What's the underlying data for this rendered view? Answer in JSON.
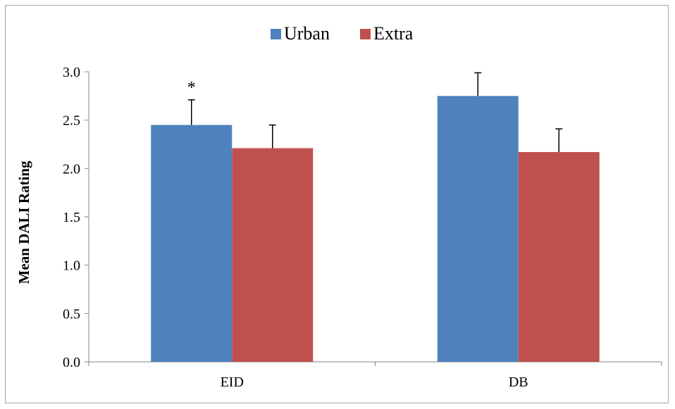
{
  "chart_data": {
    "type": "bar",
    "title": "",
    "xlabel": "",
    "ylabel": "Mean DALI Rating",
    "categories": [
      "EID",
      "DB"
    ],
    "series": [
      {
        "name": "Urban",
        "color": "#4f81bd",
        "values": [
          2.45,
          2.75
        ],
        "error": [
          0.26,
          0.24
        ]
      },
      {
        "name": "Extra",
        "color": "#c0504d",
        "values": [
          2.21,
          2.17
        ],
        "error": [
          0.24,
          0.24
        ]
      }
    ],
    "ylim": [
      0,
      3.0
    ],
    "yticks": [
      "0.0",
      "0.5",
      "1.0",
      "1.5",
      "2.0",
      "2.5",
      "3.0"
    ],
    "grid": false,
    "legend_position": "top-center",
    "annotations": [
      {
        "text": "*",
        "category": "EID",
        "series": "Urban"
      }
    ]
  }
}
